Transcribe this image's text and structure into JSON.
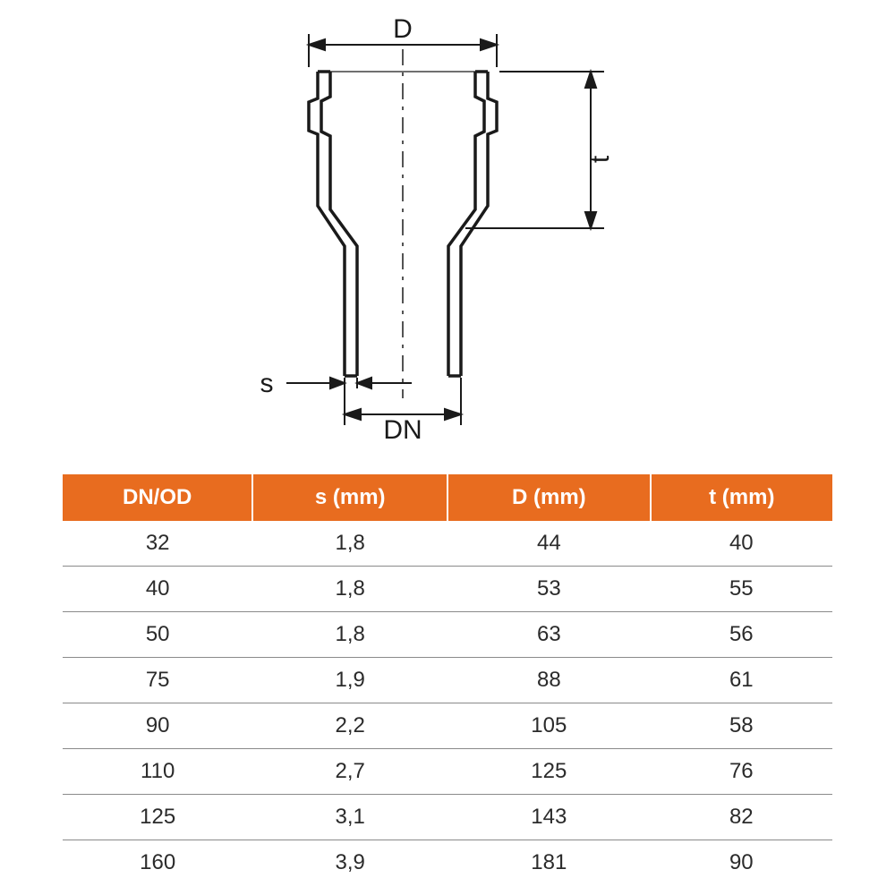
{
  "diagram": {
    "labels": {
      "D": "D",
      "t": "t",
      "s": "s",
      "DN": "DN"
    },
    "stroke_color": "#1a1a1a",
    "outline_width": 3.5,
    "dim_line_width": 2,
    "centerline_dash": "18 8 4 8"
  },
  "table": {
    "columns": [
      "DN/OD",
      "s (mm)",
      "D (mm)",
      "t (mm)"
    ],
    "rows": [
      [
        "32",
        "1,8",
        "44",
        "40"
      ],
      [
        "40",
        "1,8",
        "53",
        "55"
      ],
      [
        "50",
        "1,8",
        "63",
        "56"
      ],
      [
        "75",
        "1,9",
        "88",
        "61"
      ],
      [
        "90",
        "2,2",
        "105",
        "58"
      ],
      [
        "110",
        "2,7",
        "125",
        "76"
      ],
      [
        "125",
        "3,1",
        "143",
        "82"
      ],
      [
        "160",
        "3,9",
        "181",
        "90"
      ]
    ],
    "header_bg": "#e86c1f",
    "header_fg": "#ffffff",
    "row_border": "#8a8a8a",
    "text_color": "#2b2b2b",
    "font_size": 24
  }
}
